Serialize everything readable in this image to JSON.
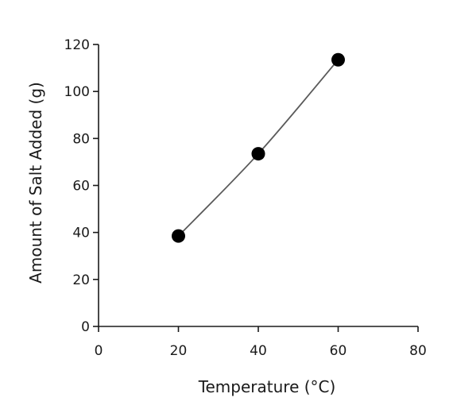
{
  "chart_data": {
    "type": "scatter",
    "title": "",
    "xlabel": "Temperature (°C)",
    "ylabel": "Amount of Salt Added (g)",
    "xlim": [
      0,
      80
    ],
    "ylim": [
      0,
      120
    ],
    "xticks": [
      0,
      20,
      40,
      60,
      80
    ],
    "yticks": [
      0,
      20,
      40,
      60,
      80,
      100,
      120
    ],
    "grid": false,
    "legend": "none",
    "points": [
      {
        "x": 20,
        "y": 38.5
      },
      {
        "x": 40,
        "y": 73.5
      },
      {
        "x": 60,
        "y": 113.5
      }
    ],
    "smooth_curve": true,
    "colors": {
      "axis": "#1a1a1a",
      "curve": "#5a5a5a",
      "point": "#000000"
    }
  }
}
